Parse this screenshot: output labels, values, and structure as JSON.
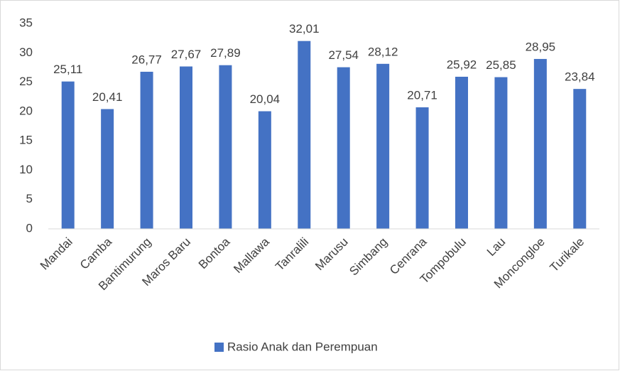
{
  "chart_data": {
    "type": "bar",
    "categories": [
      "Mandai",
      "Camba",
      "Bantimurung",
      "Maros Baru",
      "Bontoa",
      "Mallawa",
      "Tanralili",
      "Marusu",
      "Simbang",
      "Cenrana",
      "Tompobulu",
      "Lau",
      "Moncongloe",
      "Turikale"
    ],
    "series": [
      {
        "name": "Rasio Anak dan Perempuan",
        "color": "#4472c4",
        "values": [
          25.11,
          20.41,
          26.77,
          27.67,
          27.89,
          20.04,
          32.01,
          27.54,
          28.12,
          20.71,
          25.92,
          25.85,
          28.95,
          23.84
        ],
        "value_labels": [
          "25,11",
          "20,41",
          "26,77",
          "27,67",
          "27,89",
          "20,04",
          "32,01",
          "27,54",
          "28,12",
          "20,71",
          "25,92",
          "25,85",
          "28,95",
          "23,84"
        ]
      }
    ],
    "ylim": [
      0,
      35
    ],
    "yticks": [
      0,
      5,
      10,
      15,
      20,
      25,
      30,
      35
    ],
    "grid": false,
    "legend": "bottom"
  }
}
